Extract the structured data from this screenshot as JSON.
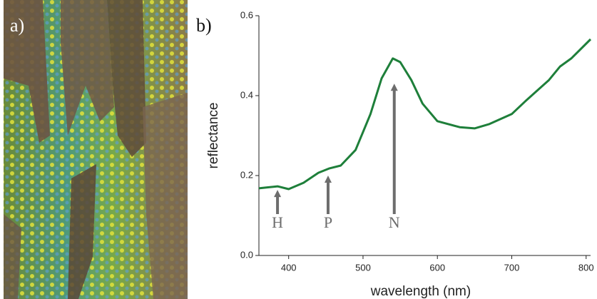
{
  "chart_data": {
    "type": "line",
    "panel_labels": [
      "a)",
      "b)"
    ],
    "xlabel": "wavelength (nm)",
    "ylabel": "reflectance",
    "x": [
      360,
      370,
      385,
      400,
      420,
      440,
      455,
      470,
      490,
      510,
      525,
      540,
      550,
      565,
      580,
      600,
      630,
      650,
      670,
      700,
      720,
      750,
      765,
      780,
      806
    ],
    "values": [
      0.168,
      0.17,
      0.173,
      0.166,
      0.182,
      0.207,
      0.218,
      0.225,
      0.264,
      0.354,
      0.443,
      0.493,
      0.484,
      0.439,
      0.38,
      0.336,
      0.321,
      0.318,
      0.329,
      0.354,
      0.389,
      0.439,
      0.473,
      0.493,
      0.541
    ],
    "color": "#1e7f3a",
    "xlim": [
      360,
      806
    ],
    "ylim": [
      0,
      0.6
    ],
    "xticks": [
      400,
      500,
      600,
      700,
      800
    ],
    "yticks": [
      {
        "value": 0,
        "label": "0.0"
      },
      0.2,
      0.4,
      0.6
    ],
    "annotations": [
      {
        "label": "H",
        "x": 385,
        "y": 0.164
      },
      {
        "label": "P",
        "x": 453,
        "y": 0.2
      },
      {
        "label": "N",
        "x": 542,
        "y": 0.43
      }
    ]
  }
}
